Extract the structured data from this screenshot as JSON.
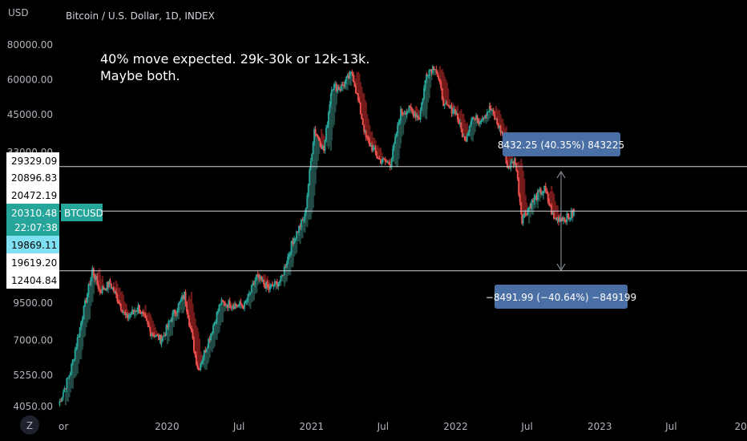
{
  "header": {
    "currency": "USD",
    "title": "Bitcoin / U.S. Dollar, 1D, INDEX"
  },
  "note": {
    "line1": "40% move expected. 29k-30k or 12k-13k.",
    "line2": "Maybe both."
  },
  "measure": {
    "up_label": "8432.25 (40.35%) 843225",
    "down_label": "−8491.99 (−40.64%) −849199"
  },
  "price_tags": {
    "level_top": "29329.09",
    "level_a": "20896.83",
    "level_b": "20472.19",
    "last_price": "20310.48",
    "symbol": "BTCUSD",
    "countdown": "22:07:38",
    "level_c": "19869.11",
    "level_d": "19619.20",
    "level_bottom": "12404.84"
  },
  "logo_icon": "tradingview-z-icon",
  "colors": {
    "up": "#26a69a",
    "down": "#ef5350",
    "cloud_red": "#8b1a1a",
    "cloud_teal": "#1f4a44",
    "tag_blue": "#4a6fa5",
    "last_price_bg": "#26a69a",
    "highlight_bg": "#7ee0f2"
  },
  "chart_data": {
    "type": "line",
    "title": "Bitcoin / U.S. Dollar, 1D, INDEX",
    "ylabel": "USD",
    "y_scale": "log",
    "ylim": [
      3700,
      95000
    ],
    "y_ticks": [
      80000,
      60000,
      45000,
      33000,
      9500,
      7000,
      5250,
      4050
    ],
    "y_tick_labels": [
      "80000.00",
      "60000.00",
      "45000.00",
      "33000.00",
      "9500.00",
      "7000.00",
      "5250.00",
      "4050.00"
    ],
    "x_ticks": [
      {
        "date": "2019-04-01",
        "label": "or"
      },
      {
        "date": "2020-01-01",
        "label": "2020"
      },
      {
        "date": "2020-07-01",
        "label": "Jul"
      },
      {
        "date": "2021-01-01",
        "label": "2021"
      },
      {
        "date": "2021-07-01",
        "label": "Jul"
      },
      {
        "date": "2022-01-01",
        "label": "2022"
      },
      {
        "date": "2022-07-01",
        "label": "Jul"
      },
      {
        "date": "2023-01-01",
        "label": "2023"
      },
      {
        "date": "2023-07-01",
        "label": "Jul"
      },
      {
        "date": "2024-01-01",
        "label": "202"
      }
    ],
    "horizontal_levels": [
      29329.09,
      20310.48,
      12404.84
    ],
    "series": [
      {
        "x": [
          "2019-04-01",
          "2019-05-01",
          "2019-06-01",
          "2019-06-26",
          "2019-07-15",
          "2019-08-10",
          "2019-09-20",
          "2019-10-20",
          "2019-11-20",
          "2019-12-18",
          "2020-01-15",
          "2020-02-14",
          "2020-03-12",
          "2020-03-20",
          "2020-04-15",
          "2020-05-15",
          "2020-06-15",
          "2020-07-15",
          "2020-08-15",
          "2020-09-15",
          "2020-10-15",
          "2020-11-15",
          "2020-12-15",
          "2021-01-08",
          "2021-02-01",
          "2021-02-21",
          "2021-03-15",
          "2021-04-14",
          "2021-05-19",
          "2021-06-22",
          "2021-07-20",
          "2021-08-15",
          "2021-09-07",
          "2021-10-01",
          "2021-10-20",
          "2021-11-10",
          "2021-12-04",
          "2021-12-31",
          "2022-01-24",
          "2022-02-10",
          "2022-03-01",
          "2022-03-29",
          "2022-04-30",
          "2022-05-12",
          "2022-06-01",
          "2022-06-18",
          "2022-07-10",
          "2022-07-30",
          "2022-08-14",
          "2022-09-07",
          "2022-09-25",
          "2022-10-15",
          "2022-10-28"
        ],
        "values": [
          4100,
          5400,
          8600,
          12500,
          10500,
          11200,
          8400,
          9200,
          7500,
          7000,
          8600,
          10200,
          6200,
          5500,
          7000,
          9500,
          9400,
          9300,
          11800,
          10700,
          11500,
          16000,
          19500,
          40000,
          33500,
          57000,
          56000,
          63500,
          37000,
          31000,
          30000,
          46000,
          47000,
          44000,
          64000,
          67500,
          48000,
          46500,
          36000,
          44000,
          43000,
          47500,
          38000,
          29000,
          31000,
          19000,
          21500,
          23500,
          24300,
          19000,
          19200,
          19300,
          20310
        ]
      }
    ]
  }
}
